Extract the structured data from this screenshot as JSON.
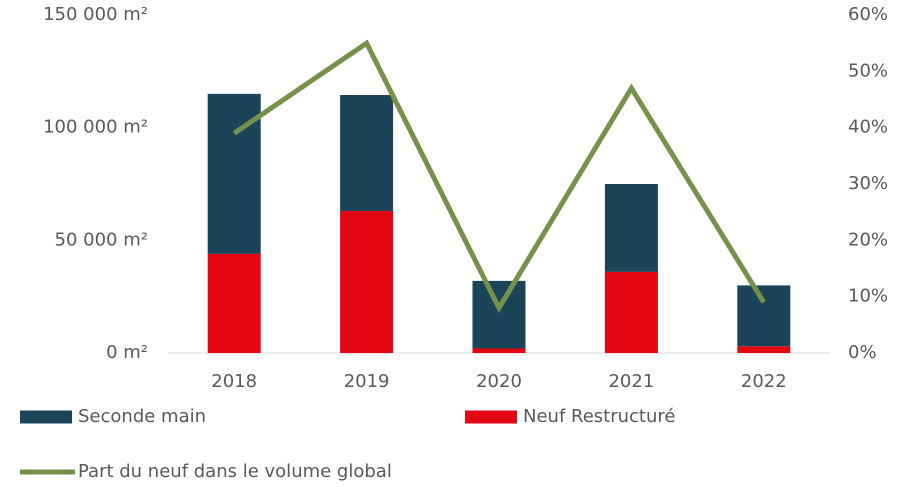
{
  "chart_data": {
    "type": "bar",
    "categories": [
      "2018",
      "2019",
      "2020",
      "2021",
      "2022"
    ],
    "series": [
      {
        "name": "Seconde main",
        "color": "#1b4459",
        "values": [
          71000,
          51500,
          30000,
          39000,
          27000
        ]
      },
      {
        "name": "Neuf Restructuré",
        "color": "#e30613",
        "values": [
          44000,
          63000,
          2000,
          36000,
          3000
        ]
      },
      {
        "name": "Part du neuf dans le volume global",
        "color": "#76914a",
        "type": "line",
        "axis": "y2",
        "values": [
          39,
          55,
          8,
          47,
          9
        ]
      }
    ],
    "stacked": true,
    "ylim": [
      0,
      150000
    ],
    "yticks": [
      {
        "value": 0,
        "label": "0 m²"
      },
      {
        "value": 50000,
        "label": "50 000 m²"
      },
      {
        "value": 100000,
        "label": "100 000 m²"
      },
      {
        "value": 150000,
        "label": "150 000 m²"
      }
    ],
    "y2lim": [
      0,
      60
    ],
    "y2ticks": [
      {
        "value": 0,
        "label": "0%"
      },
      {
        "value": 10,
        "label": "10%"
      },
      {
        "value": 20,
        "label": "20%"
      },
      {
        "value": 30,
        "label": "30%"
      },
      {
        "value": 40,
        "label": "40%"
      },
      {
        "value": 50,
        "label": "50%"
      },
      {
        "value": 60,
        "label": "60%"
      }
    ],
    "grid": false,
    "legend": "bottom"
  }
}
